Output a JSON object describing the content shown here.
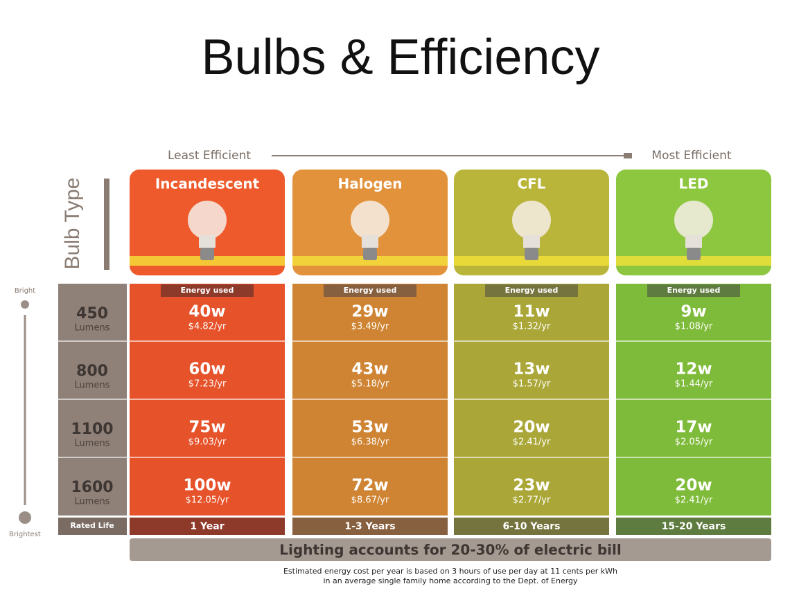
{
  "title": "Bulbs & Efficiency",
  "scale": {
    "left": "Least Efficient",
    "right": "Most Efficient"
  },
  "row_header": "Bulb Type",
  "brightness": {
    "top": "Bright",
    "bottom": "Brightest"
  },
  "bulbs": [
    {
      "name": "Incandescent",
      "energy_label": "Energy used",
      "life": "1 Year",
      "color": "#ee5a2b",
      "body": "#e6522a",
      "dark": "#8e3a2b"
    },
    {
      "name": "Halogen",
      "energy_label": "Energy used",
      "life": "1-3 Years",
      "color": "#e3923c",
      "body": "#cf8433",
      "dark": "#86603f"
    },
    {
      "name": "CFL",
      "energy_label": "Energy used",
      "life": "6-10 Years",
      "color": "#b9b53b",
      "body": "#aaa738",
      "dark": "#76743e"
    },
    {
      "name": "LED",
      "energy_label": "Energy used",
      "life": "15-20 Years",
      "color": "#8dc63f",
      "body": "#7fbb3a",
      "dark": "#5e7c3f"
    }
  ],
  "rows": [
    {
      "lumens": 450,
      "unit": "Lumens",
      "cells": [
        {
          "watts": "40w",
          "cost": "$4.82/yr"
        },
        {
          "watts": "29w",
          "cost": "$3.49/yr"
        },
        {
          "watts": "11w",
          "cost": "$1.32/yr"
        },
        {
          "watts": "9w",
          "cost": "$1.08/yr"
        }
      ]
    },
    {
      "lumens": 800,
      "unit": "Lumens",
      "cells": [
        {
          "watts": "60w",
          "cost": "$7.23/yr"
        },
        {
          "watts": "43w",
          "cost": "$5.18/yr"
        },
        {
          "watts": "13w",
          "cost": "$1.57/yr"
        },
        {
          "watts": "12w",
          "cost": "$1.44/yr"
        }
      ]
    },
    {
      "lumens": 1100,
      "unit": "Lumens",
      "cells": [
        {
          "watts": "75w",
          "cost": "$9.03/yr"
        },
        {
          "watts": "53w",
          "cost": "$6.38/yr"
        },
        {
          "watts": "20w",
          "cost": "$2.41/yr"
        },
        {
          "watts": "17w",
          "cost": "$2.05/yr"
        }
      ]
    },
    {
      "lumens": 1600,
      "unit": "Lumens",
      "cells": [
        {
          "watts": "100w",
          "cost": "$12.05/yr"
        },
        {
          "watts": "72w",
          "cost": "$8.67/yr"
        },
        {
          "watts": "23w",
          "cost": "$2.77/yr"
        },
        {
          "watts": "20w",
          "cost": "$2.41/yr"
        }
      ]
    }
  ],
  "rated_life_label": "Rated Life",
  "banner": "Lighting accounts for 20-30% of electric bill",
  "footnote": [
    "Estimated energy cost per year is based on 3 hours of use per day at 11 cents per kWh",
    "in an average single family home according to the Dept. of Energy"
  ]
}
